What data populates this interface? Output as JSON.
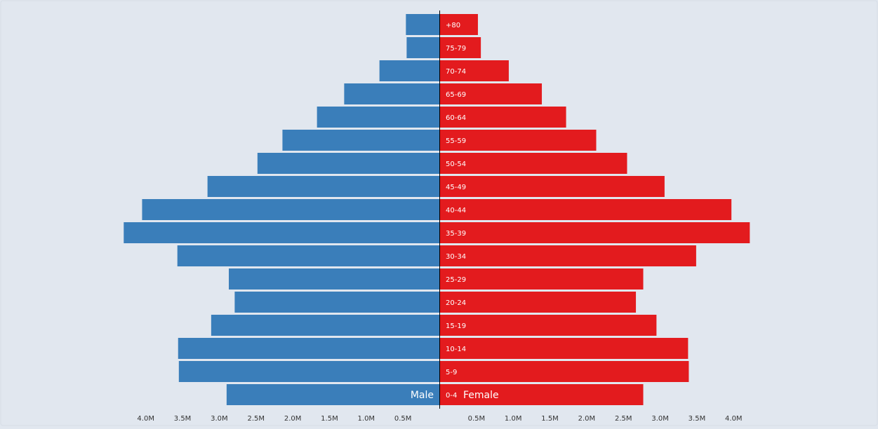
{
  "chart_data": {
    "type": "bar",
    "orientation": "horizontal",
    "layout": "population-pyramid",
    "categories": [
      "+80",
      "75-79",
      "70-74",
      "65-69",
      "60-64",
      "55-59",
      "50-54",
      "45-49",
      "40-44",
      "35-39",
      "30-34",
      "25-29",
      "20-24",
      "15-19",
      "10-14",
      "5-9",
      "0-4"
    ],
    "series": [
      {
        "name": "Male",
        "color": "#3a7eba",
        "values": [
          0.46,
          0.45,
          0.82,
          1.3,
          1.67,
          2.14,
          2.48,
          3.16,
          4.05,
          4.3,
          3.57,
          2.87,
          2.79,
          3.11,
          3.56,
          3.55,
          2.9
        ]
      },
      {
        "name": "Female",
        "color": "#e31b1e",
        "values": [
          0.52,
          0.56,
          0.94,
          1.39,
          1.72,
          2.13,
          2.55,
          3.06,
          3.97,
          4.22,
          3.49,
          2.77,
          2.67,
          2.95,
          3.38,
          3.39,
          2.77
        ]
      }
    ],
    "x_ticks_left": [
      "4.0M",
      "3.5M",
      "3.0M",
      "2.5M",
      "2.0M",
      "1.5M",
      "1.0M",
      "0.5M"
    ],
    "x_ticks_right": [
      "0.5M",
      "1.0M",
      "1.5M",
      "2.0M",
      "2.5M",
      "3.0M",
      "3.5M",
      "4.0M"
    ],
    "x_tick_values": [
      4.0,
      3.5,
      3.0,
      2.5,
      2.0,
      1.5,
      1.0,
      0.5
    ],
    "xlim": [
      0,
      4.3
    ],
    "unit": "M",
    "grid": false,
    "legend": "none"
  }
}
